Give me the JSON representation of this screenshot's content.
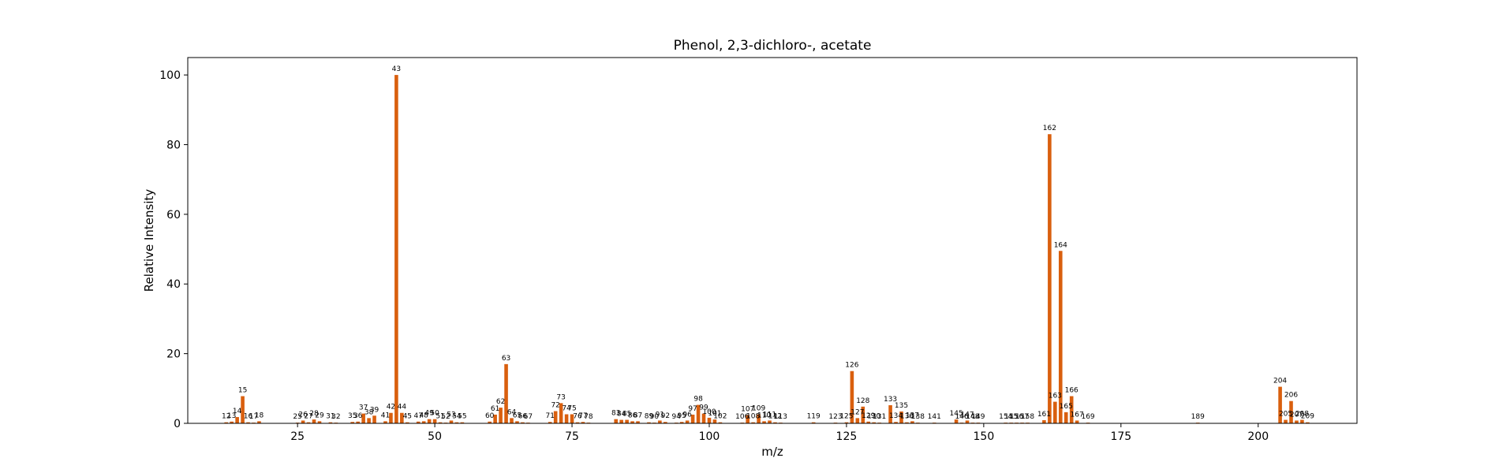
{
  "chart_data": {
    "type": "bar",
    "title": "Phenol, 2,3-dichloro-, acetate",
    "xlabel": "m/z",
    "ylabel": "Relative Intensity",
    "xlim": [
      5,
      218
    ],
    "ylim": [
      0,
      105
    ],
    "x_ticks": [
      25,
      50,
      75,
      100,
      125,
      150,
      175,
      200
    ],
    "y_ticks": [
      0,
      20,
      40,
      60,
      80,
      100
    ],
    "bar_color": "#d95f0e",
    "grid": false,
    "peaks": [
      {
        "mz": 12,
        "intensity": 0.3
      },
      {
        "mz": 13,
        "intensity": 0.5
      },
      {
        "mz": 14,
        "intensity": 1.8
      },
      {
        "mz": 15,
        "intensity": 7.8
      },
      {
        "mz": 16,
        "intensity": 0.3
      },
      {
        "mz": 17,
        "intensity": 0.2
      },
      {
        "mz": 18,
        "intensity": 0.6
      },
      {
        "mz": 25,
        "intensity": 0.2
      },
      {
        "mz": 26,
        "intensity": 0.8
      },
      {
        "mz": 27,
        "intensity": 0.3
      },
      {
        "mz": 28,
        "intensity": 1.1
      },
      {
        "mz": 29,
        "intensity": 0.6
      },
      {
        "mz": 31,
        "intensity": 0.3
      },
      {
        "mz": 32,
        "intensity": 0.2
      },
      {
        "mz": 35,
        "intensity": 0.4
      },
      {
        "mz": 36,
        "intensity": 0.5
      },
      {
        "mz": 37,
        "intensity": 2.8
      },
      {
        "mz": 38,
        "intensity": 1.5
      },
      {
        "mz": 39,
        "intensity": 2.2
      },
      {
        "mz": 41,
        "intensity": 0.6
      },
      {
        "mz": 42,
        "intensity": 3.0
      },
      {
        "mz": 43,
        "intensity": 100.0
      },
      {
        "mz": 44,
        "intensity": 3.0
      },
      {
        "mz": 45,
        "intensity": 0.3
      },
      {
        "mz": 47,
        "intensity": 0.5
      },
      {
        "mz": 48,
        "intensity": 0.6
      },
      {
        "mz": 49,
        "intensity": 1.2
      },
      {
        "mz": 50,
        "intensity": 1.2
      },
      {
        "mz": 51,
        "intensity": 0.3
      },
      {
        "mz": 52,
        "intensity": 0.2
      },
      {
        "mz": 53,
        "intensity": 0.8
      },
      {
        "mz": 54,
        "intensity": 0.3
      },
      {
        "mz": 55,
        "intensity": 0.3
      },
      {
        "mz": 60,
        "intensity": 0.5
      },
      {
        "mz": 61,
        "intensity": 2.5
      },
      {
        "mz": 62,
        "intensity": 4.5
      },
      {
        "mz": 63,
        "intensity": 17.0
      },
      {
        "mz": 64,
        "intensity": 1.5
      },
      {
        "mz": 65,
        "intensity": 0.6
      },
      {
        "mz": 66,
        "intensity": 0.3
      },
      {
        "mz": 67,
        "intensity": 0.2
      },
      {
        "mz": 71,
        "intensity": 0.4
      },
      {
        "mz": 72,
        "intensity": 3.5
      },
      {
        "mz": 73,
        "intensity": 5.8
      },
      {
        "mz": 74,
        "intensity": 2.6
      },
      {
        "mz": 75,
        "intensity": 2.6
      },
      {
        "mz": 76,
        "intensity": 0.3
      },
      {
        "mz": 77,
        "intensity": 0.4
      },
      {
        "mz": 78,
        "intensity": 0.2
      },
      {
        "mz": 83,
        "intensity": 1.2
      },
      {
        "mz": 84,
        "intensity": 1.0
      },
      {
        "mz": 85,
        "intensity": 1.0
      },
      {
        "mz": 86,
        "intensity": 0.6
      },
      {
        "mz": 87,
        "intensity": 0.6
      },
      {
        "mz": 89,
        "intensity": 0.3
      },
      {
        "mz": 90,
        "intensity": 0.2
      },
      {
        "mz": 91,
        "intensity": 0.8
      },
      {
        "mz": 92,
        "intensity": 0.4
      },
      {
        "mz": 94,
        "intensity": 0.2
      },
      {
        "mz": 95,
        "intensity": 0.4
      },
      {
        "mz": 96,
        "intensity": 0.8
      },
      {
        "mz": 97,
        "intensity": 2.5
      },
      {
        "mz": 98,
        "intensity": 5.3
      },
      {
        "mz": 99,
        "intensity": 2.8
      },
      {
        "mz": 100,
        "intensity": 1.6
      },
      {
        "mz": 101,
        "intensity": 1.1
      },
      {
        "mz": 102,
        "intensity": 0.3
      },
      {
        "mz": 106,
        "intensity": 0.2
      },
      {
        "mz": 107,
        "intensity": 2.4
      },
      {
        "mz": 108,
        "intensity": 0.3
      },
      {
        "mz": 109,
        "intensity": 2.6
      },
      {
        "mz": 110,
        "intensity": 0.6
      },
      {
        "mz": 111,
        "intensity": 0.8
      },
      {
        "mz": 112,
        "intensity": 0.3
      },
      {
        "mz": 113,
        "intensity": 0.2
      },
      {
        "mz": 119,
        "intensity": 0.3
      },
      {
        "mz": 123,
        "intensity": 0.2
      },
      {
        "mz": 125,
        "intensity": 0.3
      },
      {
        "mz": 126,
        "intensity": 15.0
      },
      {
        "mz": 127,
        "intensity": 1.5
      },
      {
        "mz": 128,
        "intensity": 4.8
      },
      {
        "mz": 129,
        "intensity": 0.5
      },
      {
        "mz": 130,
        "intensity": 0.3
      },
      {
        "mz": 131,
        "intensity": 0.2
      },
      {
        "mz": 133,
        "intensity": 5.2
      },
      {
        "mz": 134,
        "intensity": 0.4
      },
      {
        "mz": 135,
        "intensity": 3.4
      },
      {
        "mz": 136,
        "intensity": 0.3
      },
      {
        "mz": 137,
        "intensity": 0.6
      },
      {
        "mz": 138,
        "intensity": 0.2
      },
      {
        "mz": 141,
        "intensity": 0.2
      },
      {
        "mz": 145,
        "intensity": 1.1
      },
      {
        "mz": 146,
        "intensity": 0.2
      },
      {
        "mz": 147,
        "intensity": 0.8
      },
      {
        "mz": 148,
        "intensity": 0.2
      },
      {
        "mz": 149,
        "intensity": 0.2
      },
      {
        "mz": 154,
        "intensity": 0.2
      },
      {
        "mz": 155,
        "intensity": 0.2
      },
      {
        "mz": 156,
        "intensity": 0.2
      },
      {
        "mz": 157,
        "intensity": 0.2
      },
      {
        "mz": 158,
        "intensity": 0.2
      },
      {
        "mz": 161,
        "intensity": 0.9
      },
      {
        "mz": 162,
        "intensity": 83.0
      },
      {
        "mz": 163,
        "intensity": 6.2
      },
      {
        "mz": 164,
        "intensity": 49.5
      },
      {
        "mz": 165,
        "intensity": 3.2
      },
      {
        "mz": 166,
        "intensity": 7.8
      },
      {
        "mz": 167,
        "intensity": 0.8
      },
      {
        "mz": 169,
        "intensity": 0.2
      },
      {
        "mz": 189,
        "intensity": 0.2
      },
      {
        "mz": 204,
        "intensity": 10.5
      },
      {
        "mz": 205,
        "intensity": 1.0
      },
      {
        "mz": 206,
        "intensity": 6.4
      },
      {
        "mz": 207,
        "intensity": 0.8
      },
      {
        "mz": 208,
        "intensity": 1.0
      },
      {
        "mz": 209,
        "intensity": 0.3
      }
    ]
  }
}
